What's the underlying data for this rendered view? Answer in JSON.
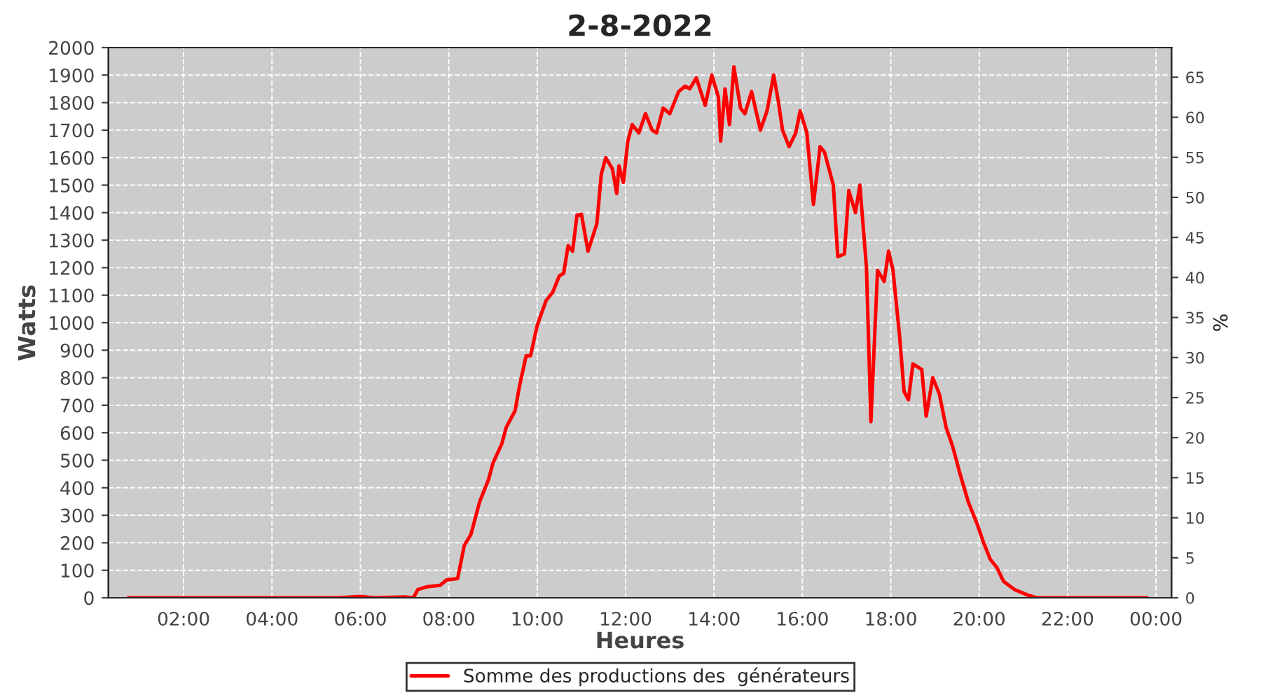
{
  "chart_data": {
    "type": "line",
    "title": "2-8-2022",
    "xlabel": "Heures",
    "ylabel": "Watts",
    "y2label": "%",
    "x": [
      0.75,
      5.5,
      6.0,
      6.3,
      7.0,
      7.2,
      7.3,
      7.5,
      7.8,
      7.95,
      8.2,
      8.35,
      8.5,
      8.7,
      8.9,
      9.0,
      9.2,
      9.3,
      9.5,
      9.6,
      9.75,
      9.85,
      10.0,
      10.2,
      10.35,
      10.5,
      10.6,
      10.7,
      10.8,
      10.9,
      11.0,
      11.15,
      11.35,
      11.45,
      11.55,
      11.7,
      11.8,
      11.85,
      11.95,
      12.05,
      12.15,
      12.3,
      12.45,
      12.6,
      12.7,
      12.85,
      13.0,
      13.2,
      13.35,
      13.45,
      13.6,
      13.8,
      13.95,
      14.1,
      14.15,
      14.25,
      14.35,
      14.45,
      14.6,
      14.7,
      14.85,
      15.05,
      15.2,
      15.35,
      15.45,
      15.55,
      15.7,
      15.85,
      15.95,
      16.1,
      16.25,
      16.4,
      16.5,
      16.6,
      16.7,
      16.8,
      16.95,
      17.05,
      17.2,
      17.3,
      17.45,
      17.55,
      17.7,
      17.85,
      17.95,
      18.05,
      18.2,
      18.3,
      18.4,
      18.5,
      18.7,
      18.8,
      18.95,
      19.1,
      19.25,
      19.4,
      19.55,
      19.75,
      19.95,
      20.1,
      20.25,
      20.4,
      20.55,
      20.8,
      21.1,
      21.3,
      23.8
    ],
    "series": [
      {
        "name": "Somme des productions des  générateurs",
        "color": "#ff0000",
        "values": [
          0,
          0,
          5,
          0,
          3,
          0,
          30,
          40,
          45,
          65,
          70,
          190,
          230,
          350,
          430,
          490,
          560,
          620,
          680,
          770,
          880,
          880,
          990,
          1080,
          1110,
          1170,
          1180,
          1280,
          1260,
          1390,
          1395,
          1260,
          1360,
          1540,
          1600,
          1560,
          1470,
          1570,
          1510,
          1660,
          1720,
          1690,
          1760,
          1700,
          1690,
          1780,
          1760,
          1840,
          1860,
          1850,
          1890,
          1790,
          1900,
          1820,
          1660,
          1850,
          1720,
          1930,
          1780,
          1760,
          1840,
          1700,
          1770,
          1900,
          1810,
          1700,
          1640,
          1690,
          1770,
          1690,
          1430,
          1640,
          1620,
          1560,
          1500,
          1240,
          1250,
          1480,
          1400,
          1500,
          1200,
          640,
          1190,
          1150,
          1260,
          1190,
          950,
          750,
          720,
          850,
          830,
          660,
          800,
          740,
          620,
          550,
          460,
          350,
          270,
          200,
          140,
          110,
          60,
          30,
          10,
          0,
          0
        ]
      }
    ],
    "xlim": [
      0.3,
      24.35
    ],
    "xticks": [
      {
        "value": 2,
        "label": "02:00"
      },
      {
        "value": 4,
        "label": "04:00"
      },
      {
        "value": 6,
        "label": "06:00"
      },
      {
        "value": 8,
        "label": "08:00"
      },
      {
        "value": 10,
        "label": "10:00"
      },
      {
        "value": 12,
        "label": "12:00"
      },
      {
        "value": 14,
        "label": "14:00"
      },
      {
        "value": 16,
        "label": "16:00"
      },
      {
        "value": 18,
        "label": "18:00"
      },
      {
        "value": 20,
        "label": "20:00"
      },
      {
        "value": 22,
        "label": "22:00"
      },
      {
        "value": 24,
        "label": "00:00"
      }
    ],
    "ylim": [
      0,
      2000
    ],
    "yticks": [
      0,
      100,
      200,
      300,
      400,
      500,
      600,
      700,
      800,
      900,
      1000,
      1100,
      1200,
      1300,
      1400,
      1500,
      1600,
      1700,
      1800,
      1900,
      2000
    ],
    "y2lim": [
      0,
      68.7
    ],
    "y2ticks": [
      0,
      5,
      10,
      15,
      20,
      25,
      30,
      35,
      40,
      45,
      50,
      55,
      60,
      65
    ],
    "grid": true,
    "legend": "bottom",
    "marker": "none",
    "line_style": "solid"
  }
}
